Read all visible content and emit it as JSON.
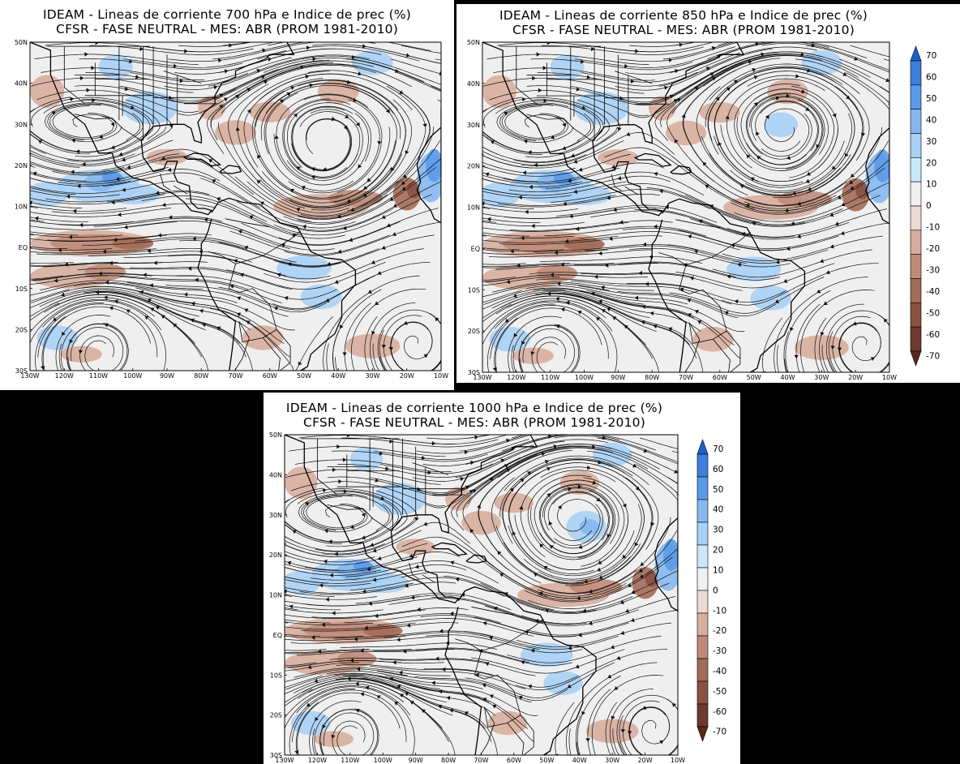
{
  "panels": [
    {
      "id": "p700",
      "title_line1": "IDEAM - Lineas de corriente 700 hPa e Indice de prec (%)",
      "title_line2": "CFSR - FASE NEUTRAL - MES: ABR (PROM 1981-2010)",
      "has_colorbar": false
    },
    {
      "id": "p850",
      "title_line1": "IDEAM - Lineas de corriente 850 hPa e Indice de prec (%)",
      "title_line2": "CFSR - FASE NEUTRAL - MES: ABR (PROM 1981-2010)",
      "has_colorbar": true
    },
    {
      "id": "p1000",
      "title_line1": "IDEAM - Lineas de corriente 1000 hPa e Indice de prec (%)",
      "title_line2": "CFSR - FASE NEUTRAL - MES: ABR (PROM 1981-2010)",
      "has_colorbar": true
    }
  ],
  "lat_labels": [
    "50N",
    "40N",
    "30N",
    "20N",
    "10N",
    "EQ",
    "10S",
    "20S",
    "30S"
  ],
  "lon_labels": [
    "130W",
    "120W",
    "110W",
    "100W",
    "90W",
    "80W",
    "70W",
    "60W",
    "50W",
    "40W",
    "30W",
    "20W",
    "10W"
  ],
  "colorbar": {
    "labels": [
      "70",
      "60",
      "50",
      "40",
      "30",
      "20",
      "10",
      "0",
      "-10",
      "-20",
      "-30",
      "-40",
      "-50",
      "-60",
      "-70"
    ],
    "colors": [
      "#1f5fc8",
      "#3c7fdc",
      "#5b9ae8",
      "#85b8ef",
      "#a9d0f5",
      "#c9e9fa",
      "#f0f0f0",
      "#eddad2",
      "#d7ad9c",
      "#bf8b78",
      "#a46b58",
      "#8a5141",
      "#6e3a2c",
      "#55291d"
    ]
  }
}
